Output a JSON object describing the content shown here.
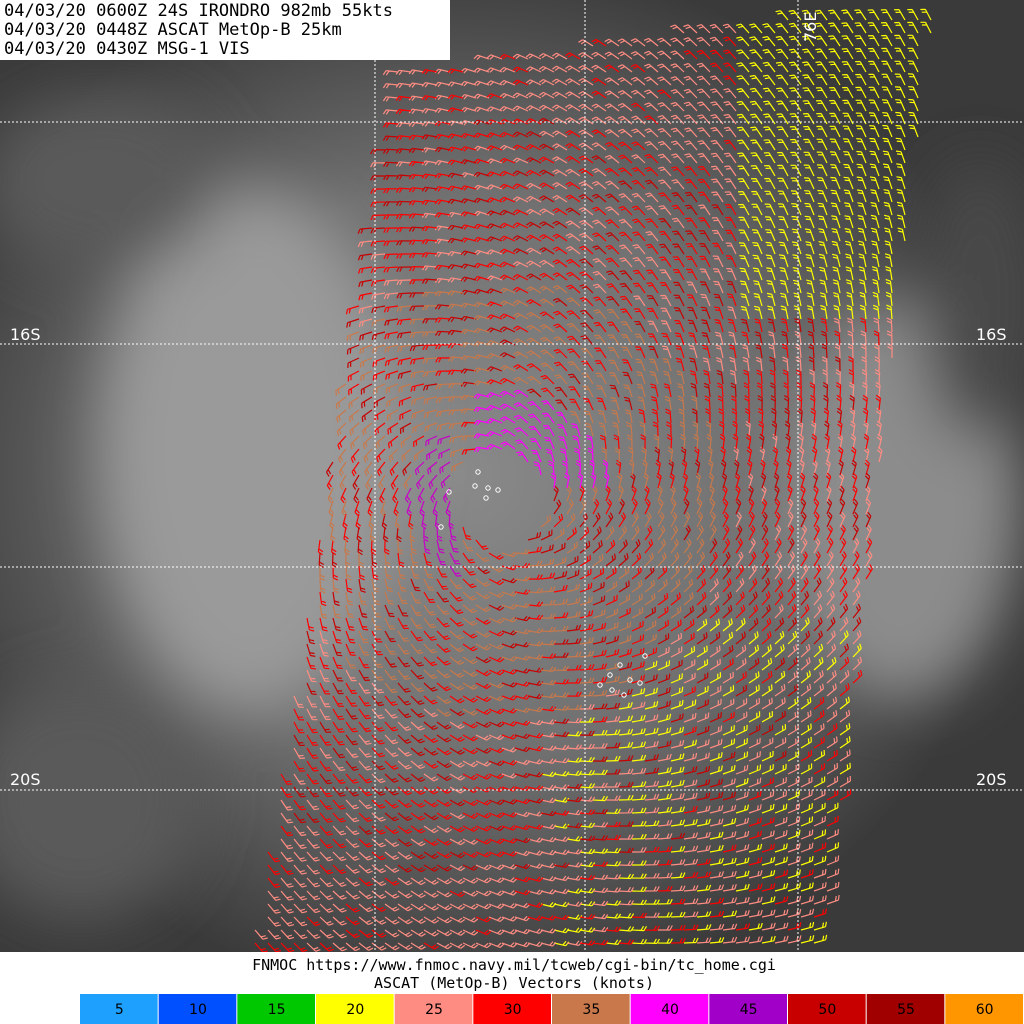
{
  "header": {
    "lines": [
      "04/03/20 0600Z  24S IRONDRO 982mb 55kts",
      "04/03/20 0448Z  ASCAT MetOp-B 25km",
      "04/03/20 0430Z  MSG-1 VIS"
    ]
  },
  "grid_labels": {
    "lat_left": [
      "16S",
      "20S"
    ],
    "lat_right": [
      "16S",
      "20S"
    ],
    "lon_top": "76E"
  },
  "footer": {
    "source": "FNMOC https://www.fnmoc.navy.mil/tcweb/cgi-bin/tc_home.cgi",
    "legend_title": "ASCAT (MetOp-B) Vectors (knots)"
  },
  "legend": [
    {
      "label": 5,
      "color": "#1ea0ff"
    },
    {
      "label": 10,
      "color": "#0050ff"
    },
    {
      "label": 15,
      "color": "#00c800"
    },
    {
      "label": 20,
      "color": "#ffff00"
    },
    {
      "label": 25,
      "color": "#ff8c82"
    },
    {
      "label": 30,
      "color": "#ff0000"
    },
    {
      "label": 35,
      "color": "#c8784b"
    },
    {
      "label": 40,
      "color": "#ff00ff"
    },
    {
      "label": 45,
      "color": "#a000c8"
    },
    {
      "label": 50,
      "color": "#c80000"
    },
    {
      "label": 55,
      "color": "#a00000"
    },
    {
      "label": 60,
      "color": "#ff9600"
    }
  ]
}
